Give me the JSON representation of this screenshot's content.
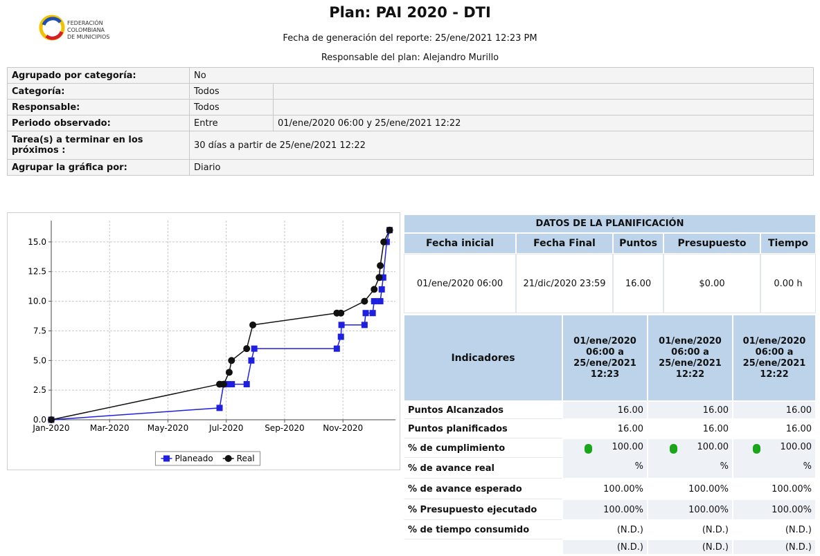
{
  "header": {
    "logo_lines": [
      "FEDERACIÓN",
      "COLOMBIANA",
      "DE MUNICIPIOS"
    ],
    "title": "Plan:  PAI 2020 - DTI",
    "generated": "Fecha de generación del reporte:  25/ene/2021 12:23 PM",
    "owner": "Responsable del plan: Alejandro Murillo"
  },
  "filters": [
    {
      "label": "Agrupado por categoría:",
      "values": [
        "No"
      ]
    },
    {
      "label": "Categoría:",
      "values": [
        "Todos"
      ]
    },
    {
      "label": "Responsable:",
      "values": [
        "Todos"
      ]
    },
    {
      "label": "Periodo observado:",
      "values": [
        "Entre",
        "01/ene/2020 06:00 y 25/ene/2021 12:22"
      ]
    },
    {
      "label": "Tarea(s) a terminar en los próximos :",
      "values": [
        "30 días a partir de 25/ene/2021 12:22"
      ]
    },
    {
      "label": "Agrupar la gráfica por:",
      "values": [
        "Diario"
      ]
    }
  ],
  "chart_data": {
    "type": "line",
    "xlim": [
      0,
      11.8
    ],
    "xticks": [
      {
        "value": 0,
        "label": "Jan-2020"
      },
      {
        "value": 2,
        "label": "Mar-2020"
      },
      {
        "value": 4,
        "label": "May-2020"
      },
      {
        "value": 6,
        "label": "Jul-2020"
      },
      {
        "value": 8,
        "label": "Sep-2020"
      },
      {
        "value": 10,
        "label": "Nov-2020"
      }
    ],
    "ylim": [
      0,
      16.8
    ],
    "yticks": [
      {
        "value": 0,
        "label": "0.0"
      },
      2.5,
      {
        "value": 5,
        "label": "5.0"
      },
      7.5,
      {
        "value": 10,
        "label": "10.0"
      },
      12.5,
      {
        "value": 15,
        "label": "15.0"
      }
    ],
    "grid": true,
    "legend": "bottom",
    "series": [
      {
        "name": "Planeado",
        "color": "#1f1fe0",
        "marker": "square",
        "x": [
          0,
          5.77,
          5.91,
          6.05,
          6.19,
          6.7,
          6.86,
          6.96,
          9.79,
          9.93,
          9.95,
          10.74,
          10.78,
          11.02,
          11.07,
          11.28,
          11.33,
          11.38,
          11.5,
          11.6
        ],
        "values": [
          0,
          1,
          3,
          3,
          3,
          3,
          5,
          6,
          6,
          7,
          8,
          8,
          9,
          9,
          10,
          10,
          11,
          12,
          15,
          16
        ]
      },
      {
        "name": "Real",
        "color": "#111111",
        "marker": "circle",
        "x": [
          0,
          5.77,
          5.91,
          6.1,
          6.18,
          6.7,
          6.91,
          9.79,
          9.93,
          10.74,
          11.07,
          11.24,
          11.28,
          11.4,
          11.6
        ],
        "values": [
          0,
          3,
          3,
          4,
          5,
          6,
          8,
          9,
          9,
          10,
          11,
          12,
          13,
          15,
          16
        ]
      }
    ]
  },
  "planning": {
    "title": "DATOS DE LA PLANIFICACIÓN",
    "columns": [
      "Fecha inicial",
      "Fecha Final",
      "Puntos",
      "Presupuesto",
      "Tiempo"
    ],
    "values": [
      "01/ene/2020 06:00",
      "21/dic/2020 23:59",
      "16.00",
      "$0.00",
      "0.00 h"
    ],
    "indicators_title": "Indicadores",
    "periods": [
      "01/ene/2020 06:00 a 25/ene/2021 12:23",
      "01/ene/2020 06:00 a 25/ene/2021 12:22",
      "01/ene/2020 06:00 a 25/ene/2021 12:22"
    ],
    "labels": [
      "Puntos Alcanzados",
      "Puntos planificados",
      "% de cumplimiento",
      "% de avance real",
      "% de avance esperado",
      "% Presupuesto ejecutado",
      "% de tiempo consumido"
    ],
    "columns_values": [
      [
        "16.00",
        "16.00",
        "100.00 %",
        "100.00%",
        "100.00%",
        "(N.D.)",
        "(N.D.)"
      ],
      [
        "16.00",
        "16.00",
        "100.00 %",
        "100.00%",
        "100.00%",
        "(N.D.)",
        "(N.D.)"
      ],
      [
        "16.00",
        "16.00",
        "100.00 %",
        "100.00%",
        "100.00%",
        "(N.D.)",
        "(N.D.)"
      ]
    ]
  }
}
